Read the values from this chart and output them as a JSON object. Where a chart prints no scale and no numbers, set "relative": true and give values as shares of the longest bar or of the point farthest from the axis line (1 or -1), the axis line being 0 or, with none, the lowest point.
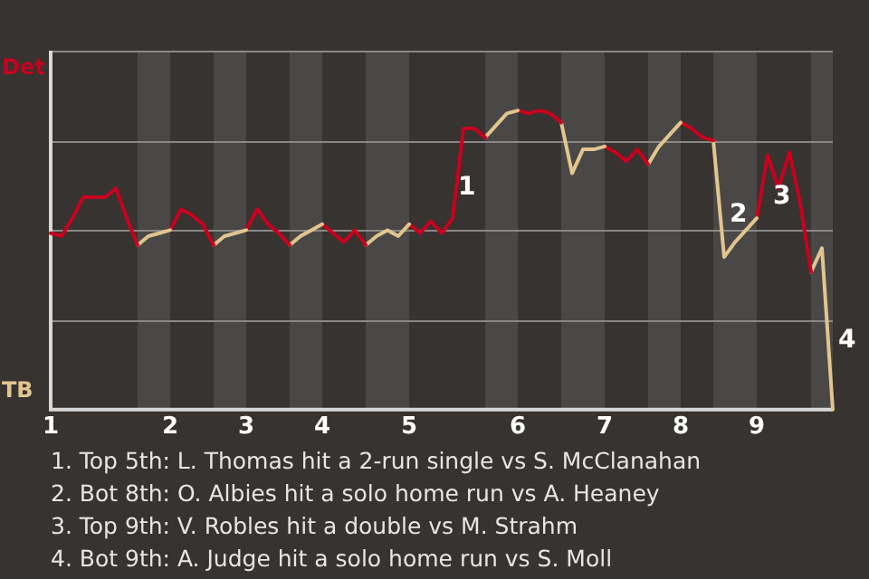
{
  "chart_data": {
    "type": "line",
    "relative": true,
    "categories": [
      "1",
      null,
      null,
      null,
      null,
      null,
      null,
      null,
      null,
      null,
      null,
      "2",
      null,
      null,
      null,
      null,
      null,
      null,
      "3",
      null,
      null,
      null,
      null,
      null,
      null,
      "4",
      null,
      null,
      null,
      null,
      null,
      null,
      null,
      "5",
      null,
      null,
      null,
      null,
      null,
      null,
      null,
      null,
      null,
      "6",
      null,
      null,
      null,
      null,
      null,
      null,
      null,
      "7",
      null,
      null,
      null,
      null,
      null,
      null,
      "8",
      null,
      null,
      null,
      null,
      null,
      null,
      "9",
      null,
      null,
      null,
      null,
      null,
      null,
      null
    ],
    "series": [
      {
        "color": "#c8001e",
        "values": [
          0.59,
          0.58,
          0.64,
          0.71,
          0.71,
          0.71,
          0.74,
          0.64,
          0.55,
          null,
          null,
          null,
          null,
          null,
          null,
          null,
          null,
          null,
          null,
          null,
          null,
          null,
          null,
          null,
          null,
          null,
          null,
          null,
          null,
          null,
          null,
          null,
          null,
          null,
          null,
          null,
          null,
          null,
          null,
          null,
          null,
          null,
          null,
          null,
          null,
          null,
          null,
          null,
          null,
          null,
          null,
          null,
          null,
          null,
          null,
          null,
          null,
          null,
          null,
          null,
          null,
          null,
          null,
          null,
          null,
          null,
          null,
          null,
          null,
          null,
          null,
          null,
          null
        ]
      },
      {
        "color": "#e2c58e",
        "values": [
          null,
          null,
          null,
          null,
          null,
          null,
          null,
          null,
          0.55,
          0.58,
          0.59,
          0.6,
          null,
          null,
          null,
          null,
          null,
          null,
          null,
          null,
          null,
          null,
          null,
          null,
          null,
          null,
          null,
          null,
          null,
          null,
          null,
          null,
          null,
          null,
          null,
          null,
          null,
          null,
          null,
          null,
          null,
          null,
          null,
          null,
          null,
          null,
          null,
          null,
          null,
          null,
          null,
          null,
          null,
          null,
          null,
          null,
          null,
          null,
          null,
          null,
          null,
          null,
          null,
          null,
          null,
          null,
          null,
          null,
          null,
          null,
          null,
          null,
          null
        ]
      },
      {
        "color": "#c8001e",
        "values": [
          null,
          null,
          null,
          null,
          null,
          null,
          null,
          null,
          null,
          null,
          null,
          0.6,
          0.67,
          0.65,
          0.62,
          0.55,
          null,
          null,
          null,
          null,
          null,
          null,
          null,
          null,
          null,
          null,
          null,
          null,
          null,
          null,
          null,
          null,
          null,
          null,
          null,
          null,
          null,
          null,
          null,
          null,
          null,
          null,
          null,
          null,
          null,
          null,
          null,
          null,
          null,
          null,
          null,
          null,
          null,
          null,
          null,
          null,
          null,
          null,
          null,
          null,
          null,
          null,
          null,
          null,
          null,
          null,
          null,
          null,
          null,
          null,
          null,
          null,
          null
        ]
      },
      {
        "color": "#e2c58e",
        "values": [
          null,
          null,
          null,
          null,
          null,
          null,
          null,
          null,
          null,
          null,
          null,
          null,
          null,
          null,
          null,
          0.55,
          0.58,
          0.59,
          0.6,
          null,
          null,
          null,
          null,
          null,
          null,
          null,
          null,
          null,
          null,
          null,
          null,
          null,
          null,
          null,
          null,
          null,
          null,
          null,
          null,
          null,
          null,
          null,
          null,
          null,
          null,
          null,
          null,
          null,
          null,
          null,
          null,
          null,
          null,
          null,
          null,
          null,
          null,
          null,
          null,
          null,
          null,
          null,
          null,
          null,
          null,
          null,
          null,
          null,
          null,
          null,
          null,
          null,
          null
        ]
      },
      {
        "color": "#c8001e",
        "values": [
          null,
          null,
          null,
          null,
          null,
          null,
          null,
          null,
          null,
          null,
          null,
          null,
          null,
          null,
          null,
          null,
          null,
          null,
          0.6,
          0.67,
          0.62,
          0.59,
          0.55,
          null,
          null,
          null,
          null,
          null,
          null,
          null,
          null,
          null,
          null,
          null,
          null,
          null,
          null,
          null,
          null,
          null,
          null,
          null,
          null,
          null,
          null,
          null,
          null,
          null,
          null,
          null,
          null,
          null,
          null,
          null,
          null,
          null,
          null,
          null,
          null,
          null,
          null,
          null,
          null,
          null,
          null,
          null,
          null,
          null,
          null,
          null,
          null,
          null,
          null
        ]
      },
      {
        "color": "#e2c58e",
        "values": [
          null,
          null,
          null,
          null,
          null,
          null,
          null,
          null,
          null,
          null,
          null,
          null,
          null,
          null,
          null,
          null,
          null,
          null,
          null,
          null,
          null,
          null,
          0.55,
          0.58,
          0.6,
          0.62,
          null,
          null,
          null,
          null,
          null,
          null,
          null,
          null,
          null,
          null,
          null,
          null,
          null,
          null,
          null,
          null,
          null,
          null,
          null,
          null,
          null,
          null,
          null,
          null,
          null,
          null,
          null,
          null,
          null,
          null,
          null,
          null,
          null,
          null,
          null,
          null,
          null,
          null,
          null,
          null,
          null,
          null,
          null,
          null,
          null,
          null,
          null
        ]
      },
      {
        "color": "#c8001e",
        "values": [
          null,
          null,
          null,
          null,
          null,
          null,
          null,
          null,
          null,
          null,
          null,
          null,
          null,
          null,
          null,
          null,
          null,
          null,
          null,
          null,
          null,
          null,
          null,
          null,
          null,
          0.62,
          0.59,
          0.56,
          0.6,
          0.55,
          null,
          null,
          null,
          null,
          null,
          null,
          null,
          null,
          null,
          null,
          null,
          null,
          null,
          null,
          null,
          null,
          null,
          null,
          null,
          null,
          null,
          null,
          null,
          null,
          null,
          null,
          null,
          null,
          null,
          null,
          null,
          null,
          null,
          null,
          null,
          null,
          null,
          null,
          null,
          null,
          null,
          null,
          null
        ]
      },
      {
        "color": "#e2c58e",
        "values": [
          null,
          null,
          null,
          null,
          null,
          null,
          null,
          null,
          null,
          null,
          null,
          null,
          null,
          null,
          null,
          null,
          null,
          null,
          null,
          null,
          null,
          null,
          null,
          null,
          null,
          null,
          null,
          null,
          null,
          0.55,
          0.58,
          0.6,
          0.58,
          0.62,
          null,
          null,
          null,
          null,
          null,
          null,
          null,
          null,
          null,
          null,
          null,
          null,
          null,
          null,
          null,
          null,
          null,
          null,
          null,
          null,
          null,
          null,
          null,
          null,
          null,
          null,
          null,
          null,
          null,
          null,
          null,
          null,
          null,
          null,
          null,
          null,
          null,
          null,
          null
        ]
      },
      {
        "color": "#c8001e",
        "values": [
          null,
          null,
          null,
          null,
          null,
          null,
          null,
          null,
          null,
          null,
          null,
          null,
          null,
          null,
          null,
          null,
          null,
          null,
          null,
          null,
          null,
          null,
          null,
          null,
          null,
          null,
          null,
          null,
          null,
          null,
          null,
          null,
          null,
          0.62,
          0.59,
          0.63,
          0.59,
          0.64,
          0.94,
          0.94,
          0.91,
          null,
          null,
          null,
          null,
          null,
          null,
          null,
          null,
          null,
          null,
          null,
          null,
          null,
          null,
          null,
          null,
          null,
          null,
          null,
          null,
          null,
          null,
          null,
          null,
          null,
          null,
          null,
          null,
          null,
          null,
          null,
          null
        ]
      },
      {
        "color": "#e2c58e",
        "values": [
          null,
          null,
          null,
          null,
          null,
          null,
          null,
          null,
          null,
          null,
          null,
          null,
          null,
          null,
          null,
          null,
          null,
          null,
          null,
          null,
          null,
          null,
          null,
          null,
          null,
          null,
          null,
          null,
          null,
          null,
          null,
          null,
          null,
          null,
          null,
          null,
          null,
          null,
          null,
          null,
          0.91,
          0.95,
          0.99,
          1,
          null,
          null,
          null,
          null,
          null,
          null,
          null,
          null,
          null,
          null,
          null,
          null,
          null,
          null,
          null,
          null,
          null,
          null,
          null,
          null,
          null,
          null,
          null,
          null,
          null,
          null,
          null,
          null,
          null
        ]
      },
      {
        "color": "#c8001e",
        "values": [
          null,
          null,
          null,
          null,
          null,
          null,
          null,
          null,
          null,
          null,
          null,
          null,
          null,
          null,
          null,
          null,
          null,
          null,
          null,
          null,
          null,
          null,
          null,
          null,
          null,
          null,
          null,
          null,
          null,
          null,
          null,
          null,
          null,
          null,
          null,
          null,
          null,
          null,
          null,
          null,
          null,
          null,
          null,
          1,
          0.99,
          1,
          0.99,
          0.96,
          null,
          null,
          null,
          null,
          null,
          null,
          null,
          null,
          null,
          null,
          null,
          null,
          null,
          null,
          null,
          null,
          null,
          null,
          null,
          null,
          null,
          null,
          null,
          null,
          null
        ]
      },
      {
        "color": "#e2c58e",
        "values": [
          null,
          null,
          null,
          null,
          null,
          null,
          null,
          null,
          null,
          null,
          null,
          null,
          null,
          null,
          null,
          null,
          null,
          null,
          null,
          null,
          null,
          null,
          null,
          null,
          null,
          null,
          null,
          null,
          null,
          null,
          null,
          null,
          null,
          null,
          null,
          null,
          null,
          null,
          null,
          null,
          null,
          null,
          null,
          null,
          null,
          null,
          null,
          0.96,
          0.79,
          0.87,
          0.87,
          0.88,
          null,
          null,
          null,
          null,
          null,
          null,
          null,
          null,
          null,
          null,
          null,
          null,
          null,
          null,
          null,
          null,
          null,
          null,
          null,
          null,
          null
        ]
      },
      {
        "color": "#c8001e",
        "values": [
          null,
          null,
          null,
          null,
          null,
          null,
          null,
          null,
          null,
          null,
          null,
          null,
          null,
          null,
          null,
          null,
          null,
          null,
          null,
          null,
          null,
          null,
          null,
          null,
          null,
          null,
          null,
          null,
          null,
          null,
          null,
          null,
          null,
          null,
          null,
          null,
          null,
          null,
          null,
          null,
          null,
          null,
          null,
          null,
          null,
          null,
          null,
          null,
          null,
          null,
          null,
          0.88,
          0.86,
          0.83,
          0.87,
          0.82,
          null,
          null,
          null,
          null,
          null,
          null,
          null,
          null,
          null,
          null,
          null,
          null,
          null,
          null,
          null,
          null,
          null
        ]
      },
      {
        "color": "#e2c58e",
        "values": [
          null,
          null,
          null,
          null,
          null,
          null,
          null,
          null,
          null,
          null,
          null,
          null,
          null,
          null,
          null,
          null,
          null,
          null,
          null,
          null,
          null,
          null,
          null,
          null,
          null,
          null,
          null,
          null,
          null,
          null,
          null,
          null,
          null,
          null,
          null,
          null,
          null,
          null,
          null,
          null,
          null,
          null,
          null,
          null,
          null,
          null,
          null,
          null,
          null,
          null,
          null,
          null,
          null,
          null,
          null,
          0.82,
          0.88,
          0.92,
          0.96,
          null,
          null,
          null,
          null,
          null,
          null,
          null,
          null,
          null,
          null,
          null,
          null,
          null,
          null
        ]
      },
      {
        "color": "#c8001e",
        "values": [
          null,
          null,
          null,
          null,
          null,
          null,
          null,
          null,
          null,
          null,
          null,
          null,
          null,
          null,
          null,
          null,
          null,
          null,
          null,
          null,
          null,
          null,
          null,
          null,
          null,
          null,
          null,
          null,
          null,
          null,
          null,
          null,
          null,
          null,
          null,
          null,
          null,
          null,
          null,
          null,
          null,
          null,
          null,
          null,
          null,
          null,
          null,
          null,
          null,
          null,
          null,
          null,
          null,
          null,
          null,
          null,
          null,
          null,
          0.96,
          0.94,
          0.91,
          0.9,
          null,
          null,
          null,
          null,
          null,
          null,
          null,
          null,
          null,
          null,
          null
        ]
      },
      {
        "color": "#e2c58e",
        "values": [
          null,
          null,
          null,
          null,
          null,
          null,
          null,
          null,
          null,
          null,
          null,
          null,
          null,
          null,
          null,
          null,
          null,
          null,
          null,
          null,
          null,
          null,
          null,
          null,
          null,
          null,
          null,
          null,
          null,
          null,
          null,
          null,
          null,
          null,
          null,
          null,
          null,
          null,
          null,
          null,
          null,
          null,
          null,
          null,
          null,
          null,
          null,
          null,
          null,
          null,
          null,
          null,
          null,
          null,
          null,
          null,
          null,
          null,
          null,
          null,
          null,
          0.9,
          0.51,
          0.56,
          0.6,
          0.64,
          null,
          null,
          null,
          null,
          null,
          null,
          null
        ]
      },
      {
        "color": "#c8001e",
        "values": [
          null,
          null,
          null,
          null,
          null,
          null,
          null,
          null,
          null,
          null,
          null,
          null,
          null,
          null,
          null,
          null,
          null,
          null,
          null,
          null,
          null,
          null,
          null,
          null,
          null,
          null,
          null,
          null,
          null,
          null,
          null,
          null,
          null,
          null,
          null,
          null,
          null,
          null,
          null,
          null,
          null,
          null,
          null,
          null,
          null,
          null,
          null,
          null,
          null,
          null,
          null,
          null,
          null,
          null,
          null,
          null,
          null,
          null,
          null,
          null,
          null,
          null,
          null,
          null,
          null,
          0.64,
          0.85,
          0.74,
          0.86,
          0.69,
          0.46,
          null,
          null
        ]
      },
      {
        "color": "#e2c58e",
        "values": [
          null,
          null,
          null,
          null,
          null,
          null,
          null,
          null,
          null,
          null,
          null,
          null,
          null,
          null,
          null,
          null,
          null,
          null,
          null,
          null,
          null,
          null,
          null,
          null,
          null,
          null,
          null,
          null,
          null,
          null,
          null,
          null,
          null,
          null,
          null,
          null,
          null,
          null,
          null,
          null,
          null,
          null,
          null,
          null,
          null,
          null,
          null,
          null,
          null,
          null,
          null,
          null,
          null,
          null,
          null,
          null,
          null,
          null,
          null,
          null,
          null,
          null,
          null,
          null,
          null,
          null,
          null,
          null,
          null,
          null,
          0.46,
          0.54,
          0
        ]
      }
    ],
    "annotations": [
      "Det",
      "TB",
      "1",
      "2",
      "3",
      "4",
      "1. Top 5th: L. Thomas hit a 2-run single vs S. McClanahan",
      "2. Bot 8th: O. Albies hit a solo home run vs A. Heaney",
      "3. Top 9th: V. Robles hit a double vs M. Strahm",
      "4. Bot 9th: A. Judge hit a solo home run vs S. Moll"
    ],
    "grid": "y",
    "legend": false,
    "marker": "none",
    "line_style": "solid"
  }
}
